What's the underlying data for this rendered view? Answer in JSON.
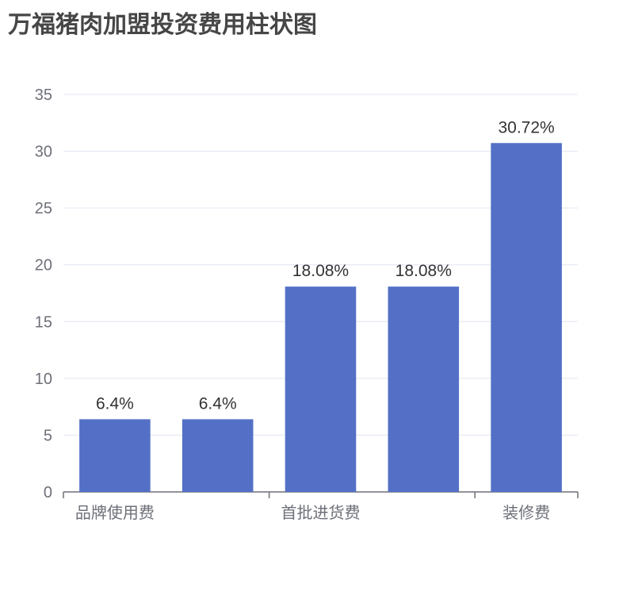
{
  "chart_data": {
    "type": "bar",
    "title": "万福猪肉加盟投资费用柱状图",
    "categories": [
      "品牌使用费",
      "",
      "首批进货费",
      "",
      "装修费"
    ],
    "values": [
      6.4,
      6.4,
      18.08,
      18.08,
      30.72
    ],
    "data_labels": [
      "6.4%",
      "6.4%",
      "18.08%",
      "18.08%",
      "30.72%"
    ],
    "ylim": [
      0,
      35
    ],
    "yticks": [
      0,
      5,
      10,
      15,
      20,
      25,
      30,
      35
    ],
    "grid": true,
    "bar_color": "#5470c6"
  }
}
